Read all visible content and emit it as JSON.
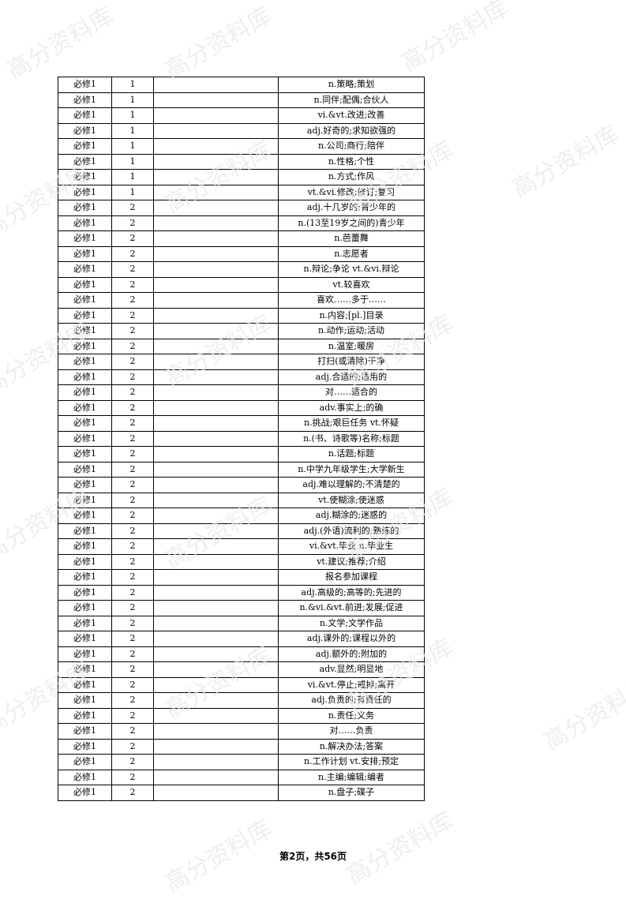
{
  "watermark": "高分资料库",
  "footer": {
    "page_label": "第2页，共56页"
  },
  "rows": [
    {
      "book": "必修1",
      "unit": "1",
      "word": "",
      "meaning": "n.策略;策划"
    },
    {
      "book": "必修1",
      "unit": "1",
      "word": "",
      "meaning": "n.同伴;配偶;合伙人"
    },
    {
      "book": "必修1",
      "unit": "1",
      "word": "",
      "meaning": "vi.&vt.改进;改善"
    },
    {
      "book": "必修1",
      "unit": "1",
      "word": "",
      "meaning": "adj.好奇的;求知欲强的"
    },
    {
      "book": "必修1",
      "unit": "1",
      "word": "",
      "meaning": "n.公司;商行;陪伴"
    },
    {
      "book": "必修1",
      "unit": "1",
      "word": "",
      "meaning": "n.性格;个性"
    },
    {
      "book": "必修1",
      "unit": "1",
      "word": "",
      "meaning": "n.方式;作风"
    },
    {
      "book": "必修1",
      "unit": "1",
      "word": "",
      "meaning": "vt.&vi.修改;修订;复习"
    },
    {
      "book": "必修1",
      "unit": "2",
      "word": "",
      "meaning": "adj.十几岁的;青少年的"
    },
    {
      "book": "必修1",
      "unit": "2",
      "word": "",
      "meaning": "n.(13至19岁之间的)青少年"
    },
    {
      "book": "必修1",
      "unit": "2",
      "word": "",
      "meaning": "n.芭蕾舞"
    },
    {
      "book": "必修1",
      "unit": "2",
      "word": "",
      "meaning": "n.志愿者"
    },
    {
      "book": "必修1",
      "unit": "2",
      "word": "",
      "meaning": "n.辩论;争论 vt.&vi.辩论"
    },
    {
      "book": "必修1",
      "unit": "2",
      "word": "",
      "meaning": "vt.较喜欢"
    },
    {
      "book": "必修1",
      "unit": "2",
      "word": "",
      "meaning": "喜欢……多于……"
    },
    {
      "book": "必修1",
      "unit": "2",
      "word": "",
      "meaning": "n.内容;[pl.]目录"
    },
    {
      "book": "必修1",
      "unit": "2",
      "word": "",
      "meaning": "n.动作;运动;活动"
    },
    {
      "book": "必修1",
      "unit": "2",
      "word": "",
      "meaning": "n.温室;暖房"
    },
    {
      "book": "必修1",
      "unit": "2",
      "word": "",
      "meaning": "打扫(或清除)干净"
    },
    {
      "book": "必修1",
      "unit": "2",
      "word": "",
      "meaning": "adj.合适的;适用的"
    },
    {
      "book": "必修1",
      "unit": "2",
      "word": "",
      "meaning": "对……适合的"
    },
    {
      "book": "必修1",
      "unit": "2",
      "word": "",
      "meaning": "adv.事实上;的确"
    },
    {
      "book": "必修1",
      "unit": "2",
      "word": "",
      "meaning": "n.挑战;艰巨任务 vt.怀疑"
    },
    {
      "book": "必修1",
      "unit": "2",
      "word": "",
      "meaning": "n.(书、诗歌等)名称;标题"
    },
    {
      "book": "必修1",
      "unit": "2",
      "word": "",
      "meaning": "n.话题;标题"
    },
    {
      "book": "必修1",
      "unit": "2",
      "word": "",
      "meaning": "n.中学九年级学生;大学新生"
    },
    {
      "book": "必修1",
      "unit": "2",
      "word": "",
      "meaning": "adj.难以理解的;不清楚的"
    },
    {
      "book": "必修1",
      "unit": "2",
      "word": "",
      "meaning": "vt.使糊涂;使迷惑"
    },
    {
      "book": "必修1",
      "unit": "2",
      "word": "",
      "meaning": "adj.糊涂的;迷惑的"
    },
    {
      "book": "必修1",
      "unit": "2",
      "word": "",
      "meaning": "adj.(外语)流利的;熟练的"
    },
    {
      "book": "必修1",
      "unit": "2",
      "word": "",
      "meaning": "vi.&vt.毕业 n.毕业生"
    },
    {
      "book": "必修1",
      "unit": "2",
      "word": "",
      "meaning": "vt.建议;推荐;介绍"
    },
    {
      "book": "必修1",
      "unit": "2",
      "word": "",
      "meaning": "报名参加课程"
    },
    {
      "book": "必修1",
      "unit": "2",
      "word": "",
      "meaning": "adj.高级的;高等的;先进的"
    },
    {
      "book": "必修1",
      "unit": "2",
      "word": "",
      "meaning": "n.&vi.&vt.前进;发展;促进"
    },
    {
      "book": "必修1",
      "unit": "2",
      "word": "",
      "meaning": "n.文学;文学作品"
    },
    {
      "book": "必修1",
      "unit": "2",
      "word": "",
      "meaning": "adj.课外的;课程以外的"
    },
    {
      "book": "必修1",
      "unit": "2",
      "word": "",
      "meaning": "adj.额外的;附加的"
    },
    {
      "book": "必修1",
      "unit": "2",
      "word": "",
      "meaning": "adv.显然;明显地"
    },
    {
      "book": "必修1",
      "unit": "2",
      "word": "",
      "meaning": "vi.&vt.停止;戒掉;离开"
    },
    {
      "book": "必修1",
      "unit": "2",
      "word": "",
      "meaning": "adj.负责的;有责任的"
    },
    {
      "book": "必修1",
      "unit": "2",
      "word": "",
      "meaning": "n.责任;义务"
    },
    {
      "book": "必修1",
      "unit": "2",
      "word": "",
      "meaning": "对……负责"
    },
    {
      "book": "必修1",
      "unit": "2",
      "word": "",
      "meaning": "n.解决办法;答案"
    },
    {
      "book": "必修1",
      "unit": "2",
      "word": "",
      "meaning": "n.工作计划 vt.安排;预定"
    },
    {
      "book": "必修1",
      "unit": "2",
      "word": "",
      "meaning": "n.主编;编辑;编者"
    },
    {
      "book": "必修1",
      "unit": "2",
      "word": "",
      "meaning": "n.盘子;碟子"
    }
  ]
}
